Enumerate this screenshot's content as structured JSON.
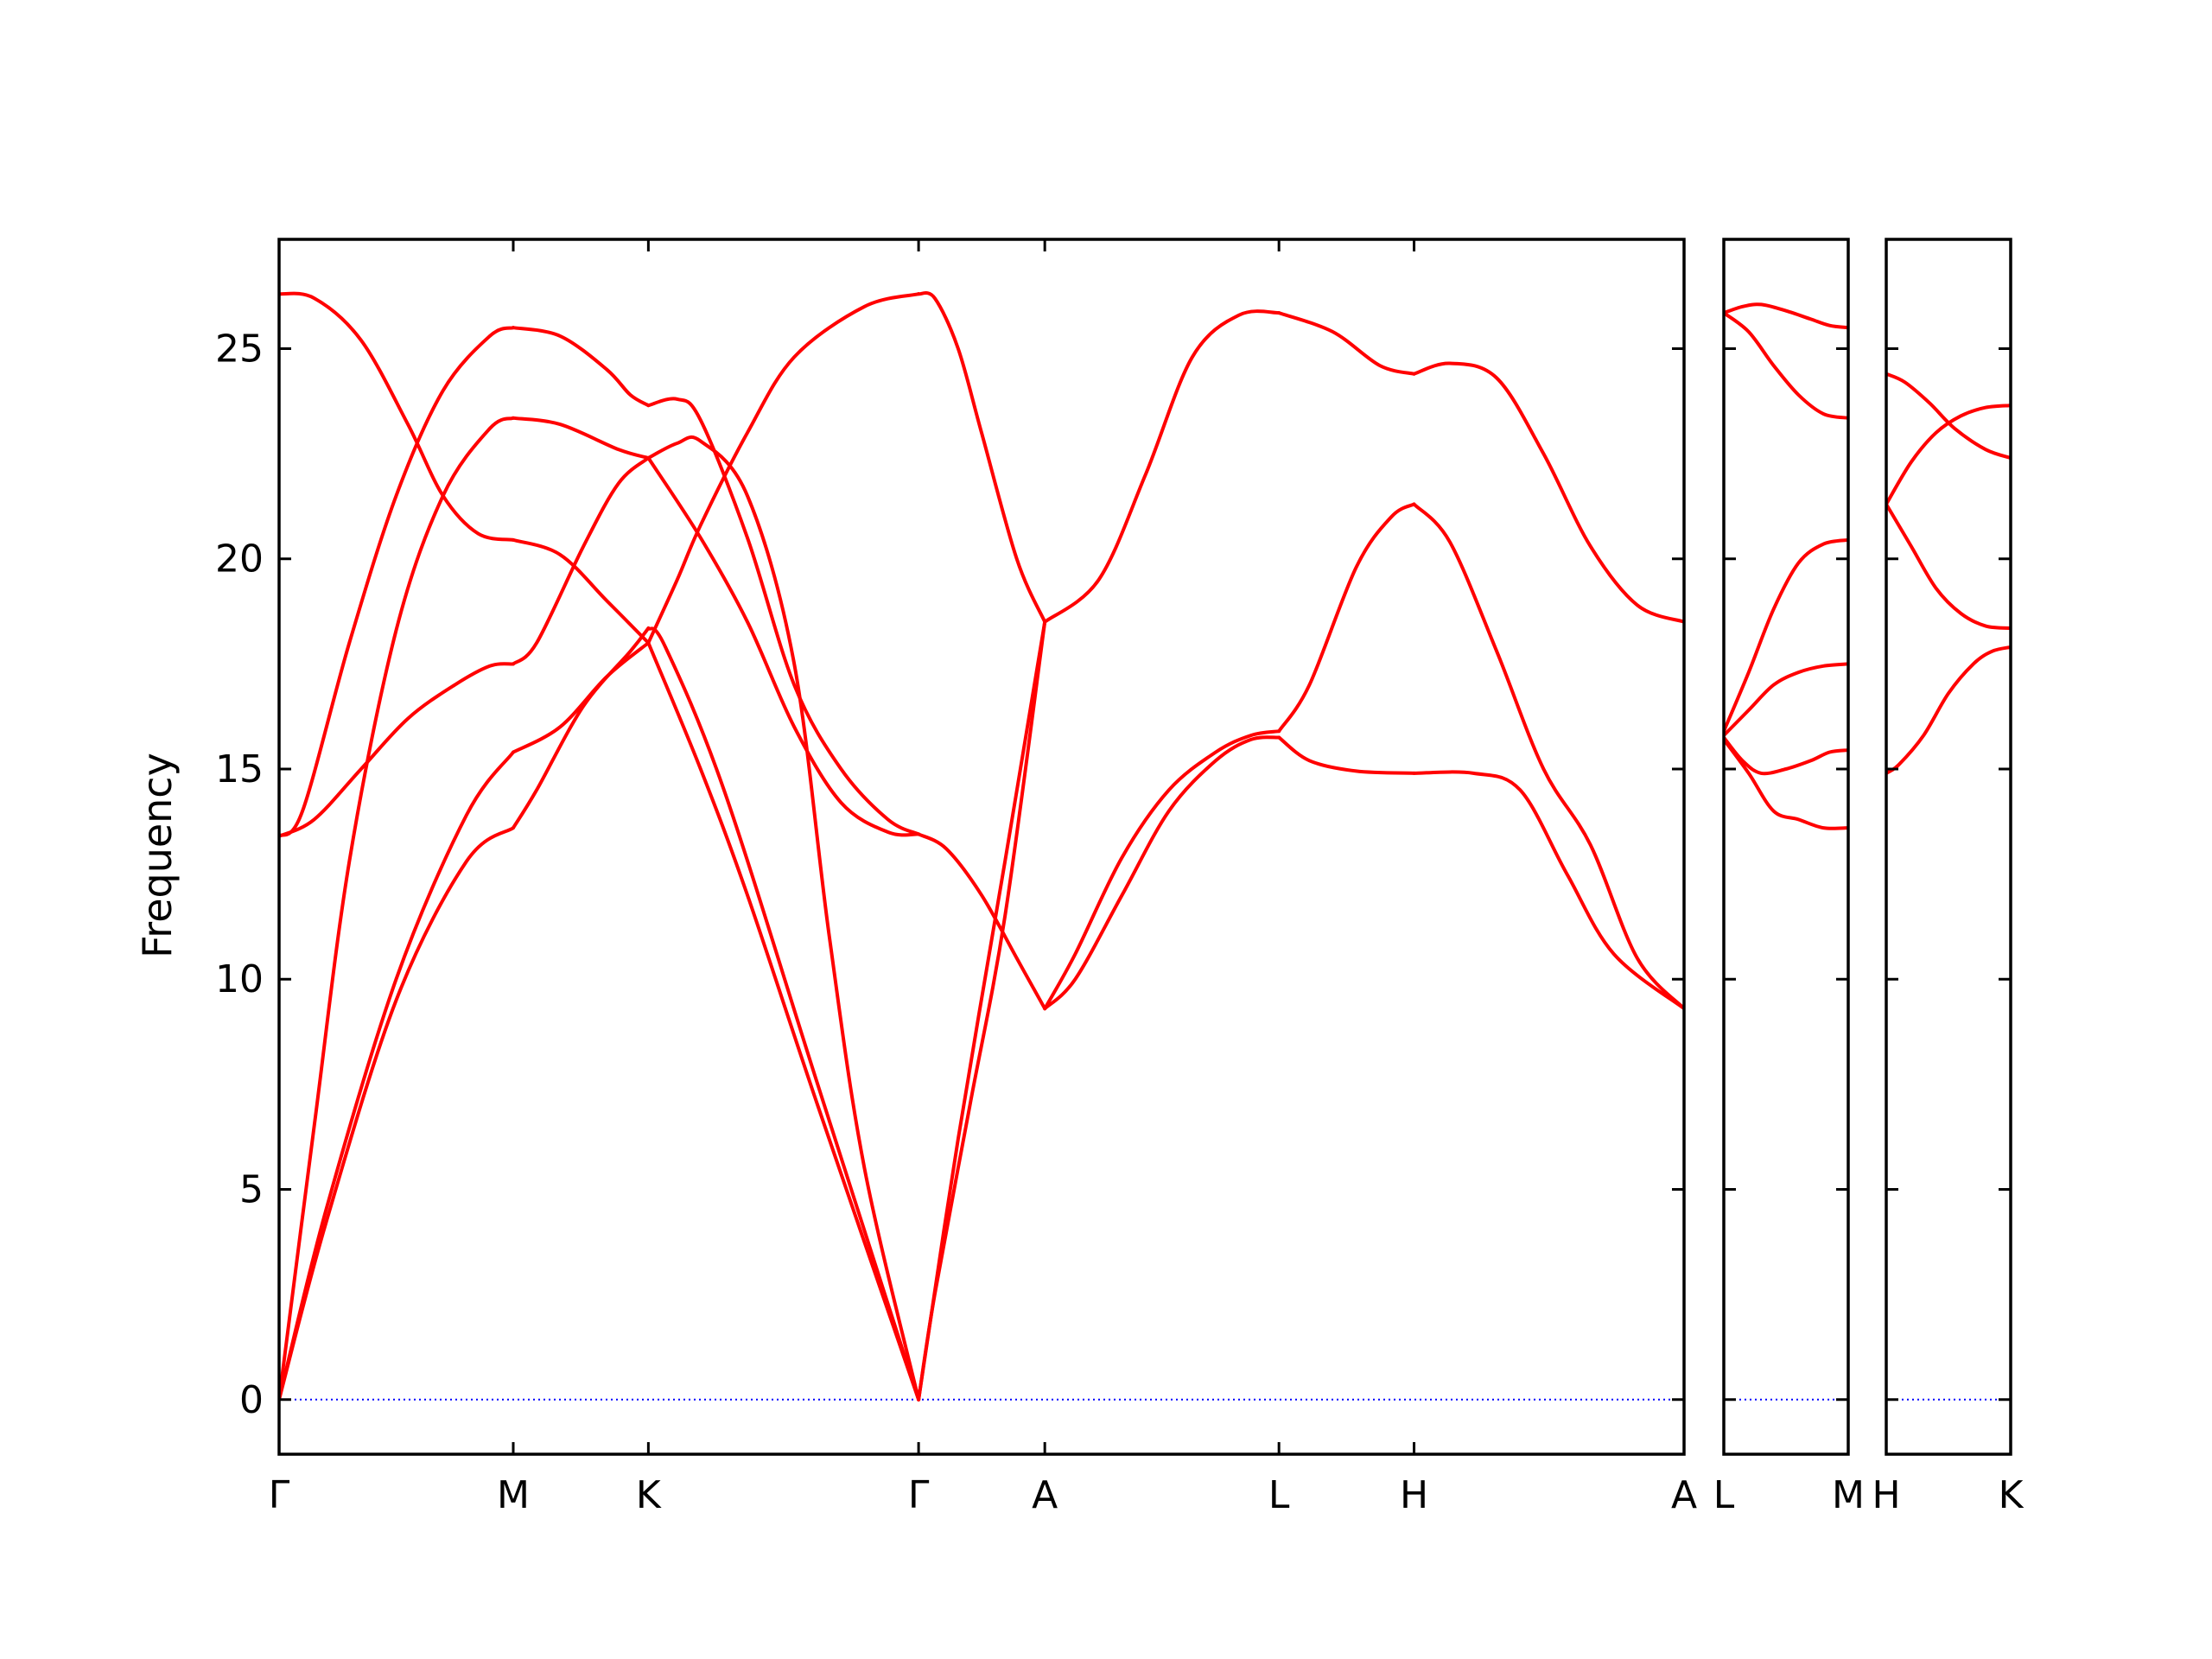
{
  "chart_data": {
    "type": "line",
    "title": "",
    "ylabel": "Frequency",
    "xlabel": "",
    "ylim": [
      -1.3,
      27.6
    ],
    "yticks": [
      0,
      5,
      10,
      15,
      20,
      25
    ],
    "grid": false,
    "line_color": "#ff0000",
    "zero_line_color": "#0000ff",
    "panels": [
      {
        "xlim": [
          0,
          6
        ],
        "ticks": [
          {
            "label": "Γ",
            "x": 0
          },
          {
            "label": "M",
            "x": 1
          },
          {
            "label": "K",
            "x": 1.577
          },
          {
            "label": "Γ",
            "x": 2.731
          },
          {
            "label": "A",
            "x": 3.27
          },
          {
            "label": "L",
            "x": 4.27
          },
          {
            "label": "H",
            "x": 4.847
          },
          {
            "label": "A",
            "x": 6
          }
        ],
        "series": [
          {
            "x": [
              0,
              0.2,
              0.5,
              0.8,
              1.0
            ],
            "y": [
              0,
              4.2,
              9.5,
              12.8,
              13.6
            ]
          },
          {
            "x": [
              1.0,
              1.1,
              1.3,
              1.5,
              1.577
            ],
            "y": [
              13.6,
              14.5,
              16.5,
              17.8,
              18.35
            ]
          },
          {
            "x": [
              1.577,
              1.65,
              1.9,
              2.3,
              2.731
            ],
            "y": [
              18.35,
              17.9,
              14.5,
              7.5,
              0
            ]
          },
          {
            "x": [
              0,
              0.2,
              0.5,
              0.8,
              1.0
            ],
            "y": [
              0,
              4.5,
              10.0,
              13.9,
              15.4
            ]
          },
          {
            "x": [
              1.0,
              1.2,
              1.4,
              1.577
            ],
            "y": [
              15.4,
              16.0,
              17.2,
              18.0
            ]
          },
          {
            "x": [
              1.577,
              1.8,
              2.0,
              2.3,
              2.731
            ],
            "y": [
              18.0,
              15.0,
              12.0,
              7.0,
              0
            ]
          },
          {
            "x": [
              0,
              0.15,
              0.3,
              0.5,
              0.7,
              0.9,
              1.0
            ],
            "y": [
              0,
              6.5,
              12.8,
              18.3,
              21.5,
              23.1,
              23.35
            ]
          },
          {
            "x": [
              1.0,
              1.2,
              1.45,
              1.577
            ],
            "y": [
              23.35,
              23.2,
              22.6,
              22.4
            ]
          },
          {
            "x": [
              1.577,
              1.8,
              2.0,
              2.2,
              2.4,
              2.6,
              2.731
            ],
            "y": [
              22.4,
              20.5,
              18.5,
              16.0,
              14.2,
              13.5,
              13.45
            ]
          },
          {
            "x": [
              0,
              0.1,
              0.3,
              0.5,
              0.7,
              0.9,
              1.0
            ],
            "y": [
              13.4,
              14.0,
              18.0,
              21.5,
              24.0,
              25.3,
              25.5
            ]
          },
          {
            "x": [
              1.0,
              1.2,
              1.4,
              1.5,
              1.577
            ],
            "y": [
              25.5,
              25.3,
              24.5,
              23.9,
              23.65
            ]
          },
          {
            "x": [
              1.577,
              1.7,
              1.8,
              2.0,
              2.2,
              2.4,
              2.6,
              2.731
            ],
            "y": [
              23.65,
              23.8,
              23.3,
              20.5,
              17.0,
              15.0,
              13.8,
              13.45
            ]
          },
          {
            "x": [
              0,
              0.15,
              0.35,
              0.55,
              0.75,
              0.9,
              1.0
            ],
            "y": [
              13.4,
              13.8,
              15.0,
              16.2,
              17.0,
              17.45,
              17.5
            ]
          },
          {
            "x": [
              1.0,
              1.1,
              1.3,
              1.45,
              1.577
            ],
            "y": [
              17.5,
              18.0,
              20.3,
              21.8,
              22.4
            ]
          },
          {
            "x": [
              1.577,
              1.7,
              1.8,
              2.0,
              2.2,
              2.35,
              2.5,
              2.731
            ],
            "y": [
              22.4,
              22.75,
              22.8,
              21.5,
              17.5,
              11.0,
              5.5,
              0
            ]
          },
          {
            "x": [
              0,
              0.15,
              0.35,
              0.55,
              0.7,
              0.85,
              1.0
            ],
            "y": [
              26.3,
              26.2,
              25.2,
              23.2,
              21.5,
              20.6,
              20.45
            ]
          },
          {
            "x": [
              1.0,
              1.2,
              1.4,
              1.577
            ],
            "y": [
              20.45,
              20.1,
              19.0,
              18.0
            ]
          },
          {
            "x": [
              1.577,
              1.7,
              1.8,
              2.0,
              2.2,
              2.5,
              2.731
            ],
            "y": [
              18.0,
              19.5,
              20.8,
              23.0,
              24.8,
              26.0,
              26.3
            ]
          },
          {
            "x": [
              2.731,
              2.85,
              3.0,
              3.15,
              3.27
            ],
            "y": [
              13.45,
              13.1,
              12.0,
              10.5,
              9.3
            ]
          },
          {
            "x": [
              3.27,
              3.4,
              3.6,
              3.8,
              4.0,
              4.15,
              4.27
            ],
            "y": [
              9.3,
              10.0,
              12.0,
              14.0,
              15.2,
              15.7,
              15.75
            ]
          },
          {
            "x": [
              4.27,
              4.4,
              4.6,
              4.847
            ],
            "y": [
              15.75,
              15.2,
              14.95,
              14.9
            ]
          },
          {
            "x": [
              4.847,
              5.1,
              5.3,
              5.5,
              5.7,
              6.0
            ],
            "y": [
              14.9,
              14.9,
              14.5,
              12.5,
              10.6,
              9.3
            ]
          },
          {
            "x": [
              3.27,
              3.4,
              3.6,
              3.8,
              4.0,
              4.15,
              4.27
            ],
            "y": [
              9.3,
              10.6,
              12.9,
              14.5,
              15.4,
              15.8,
              15.9
            ]
          },
          {
            "x": [
              4.27,
              4.4,
              4.6,
              4.75,
              4.847
            ],
            "y": [
              15.9,
              17.0,
              19.8,
              21.0,
              21.3
            ]
          },
          {
            "x": [
              4.847,
              5.0,
              5.2,
              5.4,
              5.6,
              5.8,
              6.0
            ],
            "y": [
              21.3,
              20.4,
              17.8,
              15.0,
              13.2,
              10.5,
              9.3
            ]
          },
          {
            "x": [
              2.731,
              2.9,
              3.1,
              3.27
            ],
            "y": [
              0,
              6.2,
              12.8,
              18.5
            ]
          },
          {
            "x": [
              3.27,
              3.5,
              3.7,
              3.9,
              4.1,
              4.27
            ],
            "y": [
              18.5,
              19.5,
              22.0,
              24.8,
              25.8,
              25.85
            ]
          },
          {
            "x": [
              4.27,
              4.5,
              4.7,
              4.847
            ],
            "y": [
              25.85,
              25.4,
              24.6,
              24.4
            ]
          },
          {
            "x": [
              4.847,
              5.0,
              5.2,
              5.4,
              5.6,
              5.8,
              6.0
            ],
            "y": [
              24.4,
              24.65,
              24.3,
              22.5,
              20.3,
              18.9,
              18.5
            ]
          },
          {
            "x": [
              2.731,
              2.8,
              2.9,
              3.0,
              3.15,
              3.27
            ],
            "y": [
              26.3,
              26.2,
              25.0,
              23.0,
              20.0,
              18.5
            ]
          },
          {
            "x": [
              2.731,
              2.8,
              2.95,
              3.1,
              3.27
            ],
            "y": [
              0,
              2.5,
              7.0,
              11.5,
              18.5
            ]
          }
        ]
      },
      {
        "xlim": [
          0,
          1
        ],
        "ticks": [
          {
            "label": "L",
            "x": 0
          },
          {
            "label": "M",
            "x": 1
          }
        ],
        "series": [
          {
            "x": [
              0,
              0.2,
              0.4,
              0.6,
              0.8,
              1.0
            ],
            "y": [
              15.7,
              14.9,
              14.0,
              13.8,
              13.6,
              13.6
            ]
          },
          {
            "x": [
              0,
              0.15,
              0.3,
              0.5,
              0.7,
              0.85,
              1.0
            ],
            "y": [
              15.75,
              15.2,
              14.9,
              15.0,
              15.2,
              15.4,
              15.45
            ]
          },
          {
            "x": [
              0,
              0.2,
              0.4,
              0.6,
              0.8,
              1.0
            ],
            "y": [
              15.8,
              16.4,
              17.0,
              17.3,
              17.45,
              17.5
            ]
          },
          {
            "x": [
              0,
              0.2,
              0.4,
              0.6,
              0.8,
              1.0
            ],
            "y": [
              15.9,
              17.3,
              18.8,
              19.9,
              20.35,
              20.45
            ]
          },
          {
            "x": [
              0,
              0.2,
              0.4,
              0.6,
              0.8,
              1.0
            ],
            "y": [
              25.85,
              25.4,
              24.6,
              23.9,
              23.45,
              23.35
            ]
          },
          {
            "x": [
              0,
              0.15,
              0.3,
              0.5,
              0.7,
              0.85,
              1.0
            ],
            "y": [
              25.85,
              26.0,
              26.05,
              25.9,
              25.7,
              25.55,
              25.5
            ]
          }
        ]
      },
      {
        "xlim": [
          0,
          1
        ],
        "ticks": [
          {
            "label": "H",
            "x": 0
          },
          {
            "label": "K",
            "x": 1
          }
        ],
        "series": [
          {
            "x": [
              0,
              0.1,
              0.3,
              0.5,
              0.7,
              0.85,
              1.0
            ],
            "y": [
              14.9,
              15.1,
              15.8,
              16.8,
              17.5,
              17.8,
              17.9
            ]
          },
          {
            "x": [
              0,
              0.2,
              0.4,
              0.6,
              0.8,
              1.0
            ],
            "y": [
              21.3,
              20.3,
              19.3,
              18.7,
              18.4,
              18.35
            ]
          },
          {
            "x": [
              0,
              0.2,
              0.4,
              0.6,
              0.8,
              1.0
            ],
            "y": [
              21.3,
              22.3,
              23.0,
              23.4,
              23.6,
              23.65
            ]
          },
          {
            "x": [
              0,
              0.15,
              0.35,
              0.55,
              0.8,
              1.0
            ],
            "y": [
              24.4,
              24.2,
              23.7,
              23.1,
              22.6,
              22.4
            ]
          }
        ]
      }
    ]
  }
}
